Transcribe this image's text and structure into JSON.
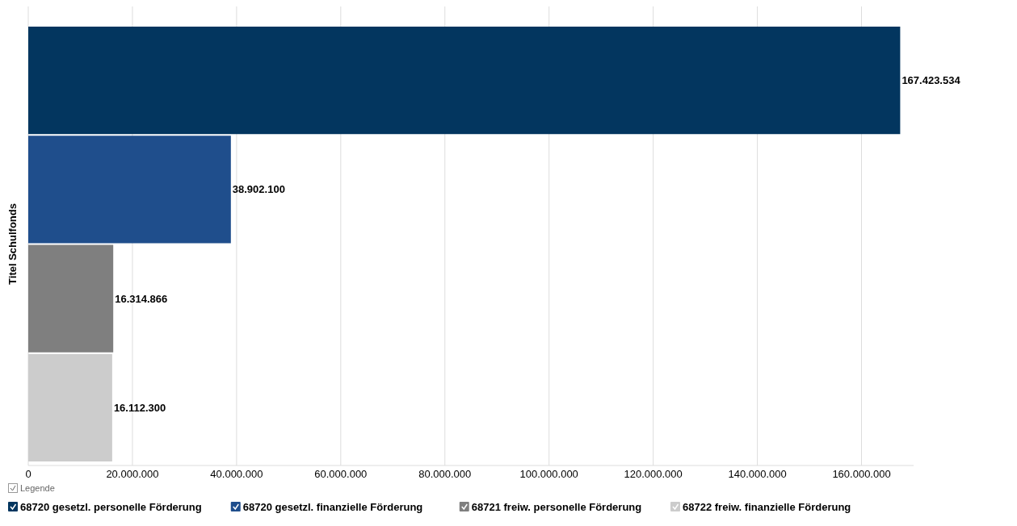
{
  "chart_data": {
    "type": "bar",
    "orientation": "horizontal",
    "ylabel": "Titel Schulfonds",
    "legend_title": "Legende",
    "legend": "bottom left",
    "grid": "x",
    "categories": [
      null,
      null,
      null,
      null
    ],
    "series": [
      {
        "name": "68720 gesetzl. personelle Förderung",
        "color": "#03365f",
        "values": [
          167423534,
          null,
          null,
          null
        ],
        "value_labels": [
          "167.423.534",
          null,
          null,
          null
        ]
      },
      {
        "name": "68720 gesetzl. finanzielle Förderung",
        "color": "#1f4e8c",
        "values": [
          null,
          38902100,
          null,
          null
        ],
        "value_labels": [
          null,
          "38.902.100",
          null,
          null
        ]
      },
      {
        "name": "68721 freiw. personelle Förderung",
        "color": "#7f7f7f",
        "values": [
          null,
          null,
          16314866,
          null
        ],
        "value_labels": [
          null,
          null,
          "16.314.866",
          null
        ]
      },
      {
        "name": "68722 freiw. finanzielle Förderung",
        "color": "#cccccc",
        "values": [
          null,
          null,
          null,
          16112300
        ],
        "value_labels": [
          null,
          null,
          null,
          "16.112.300"
        ]
      }
    ],
    "xlim": [
      0,
      170000000
    ],
    "xticks": [
      0,
      {
        "value": 20000000,
        "label": "20.000.000"
      },
      {
        "value": 40000000,
        "label": "40.000.000"
      },
      {
        "value": 60000000,
        "label": "60.000.000"
      },
      {
        "value": 80000000,
        "label": "80.000.000"
      },
      {
        "value": 100000000,
        "label": "100.000.000"
      },
      {
        "value": 120000000,
        "label": "120.000.000"
      },
      {
        "value": 140000000,
        "label": "140.000.000"
      },
      {
        "value": 160000000,
        "label": "160.000.000"
      }
    ]
  }
}
